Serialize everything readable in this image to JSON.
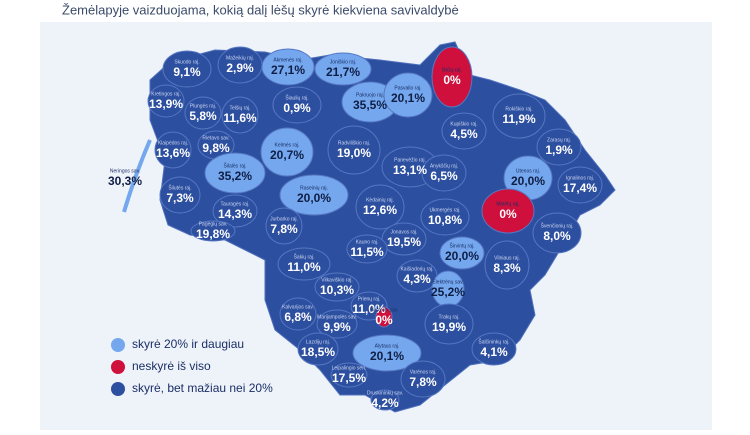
{
  "title": "Žemėlapyje vaizduojama, kokią dalį lėšų skyrė kiekviena savivaldybė",
  "legend": [
    {
      "label": "skyrė 20% ir daugiau",
      "color": "#74a7ee"
    },
    {
      "label": "neskyrė iš viso",
      "color": "#cf0f3c"
    },
    {
      "label": "skyrė, bet mažiau nei 20%",
      "color": "#2d4f9f"
    }
  ],
  "regions": [
    {
      "name": "Skuodo raj.",
      "value": "9,1%",
      "color": "#2d4f9f"
    },
    {
      "name": "Mažeikių raj.",
      "value": "2,9%",
      "color": "#2d4f9f"
    },
    {
      "name": "Akmenės raj.",
      "value": "27,1%",
      "color": "#74a7ee"
    },
    {
      "name": "Joniškio raj.",
      "value": "21,7%",
      "color": "#74a7ee"
    },
    {
      "name": "Biržų raj.",
      "value": "0%",
      "color": "#cf0f3c"
    },
    {
      "name": "Pakruojo raj.",
      "value": "35,5%",
      "color": "#74a7ee"
    },
    {
      "name": "Pasvalio raj.",
      "value": "20,1%",
      "color": "#74a7ee"
    },
    {
      "name": "Kretingos raj.",
      "value": "13,9%",
      "color": "#2d4f9f"
    },
    {
      "name": "Plungės raj.",
      "value": "5,8%",
      "color": "#2d4f9f"
    },
    {
      "name": "Telšių raj.",
      "value": "11,6%",
      "color": "#2d4f9f"
    },
    {
      "name": "Šiaulių raj.",
      "value": "0,9%",
      "color": "#2d4f9f"
    },
    {
      "name": "Rokiškio raj.",
      "value": "11,9%",
      "color": "#2d4f9f"
    },
    {
      "name": "Kupiškio raj.",
      "value": "4,5%",
      "color": "#2d4f9f"
    },
    {
      "name": "Zarasų raj.",
      "value": "1,9%",
      "color": "#2d4f9f"
    },
    {
      "name": "Klaipėdos raj.",
      "value": "13,6%",
      "color": "#2d4f9f"
    },
    {
      "name": "Rietavo sav.",
      "value": "9,8%",
      "color": "#2d4f9f"
    },
    {
      "name": "Kelmės raj.",
      "value": "20,7%",
      "color": "#74a7ee"
    },
    {
      "name": "Radviliškio raj.",
      "value": "19,0%",
      "color": "#2d4f9f"
    },
    {
      "name": "Panevėžio raj.",
      "value": "13,1%",
      "color": "#2d4f9f"
    },
    {
      "name": "Anykščių raj.",
      "value": "6,5%",
      "color": "#2d4f9f"
    },
    {
      "name": "Utenos raj.",
      "value": "20,0%",
      "color": "#74a7ee"
    },
    {
      "name": "Ignalinos raj.",
      "value": "17,4%",
      "color": "#2d4f9f"
    },
    {
      "name": "Neringos sav.",
      "value": "30,3%",
      "color": "#74a7ee"
    },
    {
      "name": "Šilutės raj.",
      "value": "7,3%",
      "color": "#2d4f9f"
    },
    {
      "name": "Šilalės raj.",
      "value": "35,2%",
      "color": "#74a7ee"
    },
    {
      "name": "Raseinių raj.",
      "value": "20,0%",
      "color": "#74a7ee"
    },
    {
      "name": "Kėdainių raj.",
      "value": "12,6%",
      "color": "#2d4f9f"
    },
    {
      "name": "Molėtų raj.",
      "value": "0%",
      "color": "#cf0f3c"
    },
    {
      "name": "Ukmergės raj.",
      "value": "10,8%",
      "color": "#2d4f9f"
    },
    {
      "name": "Švenčionių raj.",
      "value": "8,0%",
      "color": "#2d4f9f"
    },
    {
      "name": "Tauragės raj.",
      "value": "14,3%",
      "color": "#2d4f9f"
    },
    {
      "name": "Pagėgių sav.",
      "value": "19,8%",
      "color": "#2d4f9f"
    },
    {
      "name": "Jurbarko raj.",
      "value": "7,8%",
      "color": "#2d4f9f"
    },
    {
      "name": "Jonavos raj.",
      "value": "19,5%",
      "color": "#2d4f9f"
    },
    {
      "name": "Kauno raj.",
      "value": "11,5%",
      "color": "#2d4f9f"
    },
    {
      "name": "Širvintų raj.",
      "value": "20,0%",
      "color": "#74a7ee"
    },
    {
      "name": "Vilniaus raj.",
      "value": "8,3%",
      "color": "#2d4f9f"
    },
    {
      "name": "Šakių raj.",
      "value": "11,0%",
      "color": "#2d4f9f"
    },
    {
      "name": "Kaišiadorių raj.",
      "value": "4,3%",
      "color": "#2d4f9f"
    },
    {
      "name": "Elektrėnų sav.",
      "value": "25,2%",
      "color": "#74a7ee"
    },
    {
      "name": "Vilkaviškio raj.",
      "value": "10,3%",
      "color": "#2d4f9f"
    },
    {
      "name": "Prienų raj.",
      "value": "11,0%",
      "color": "#2d4f9f"
    },
    {
      "name": "Birštono sav.",
      "value": "0%",
      "color": "#cf0f3c"
    },
    {
      "name": "Kalvarijos sav.",
      "value": "6,8%",
      "color": "#2d4f9f"
    },
    {
      "name": "Marijampolės sav.",
      "value": "9,9%",
      "color": "#2d4f9f"
    },
    {
      "name": "Trakų raj.",
      "value": "19,9%",
      "color": "#2d4f9f"
    },
    {
      "name": "Šalčininkų raj.",
      "value": "4,1%",
      "color": "#2d4f9f"
    },
    {
      "name": "Lazdijų raj.",
      "value": "18,5%",
      "color": "#2d4f9f"
    },
    {
      "name": "Alytaus raj.",
      "value": "20,1%",
      "color": "#74a7ee"
    },
    {
      "name": "Leipalingio sen.",
      "value": "17,5%",
      "color": "#2d4f9f"
    },
    {
      "name": "Varėnos raj.",
      "value": "7,8%",
      "color": "#2d4f9f"
    },
    {
      "name": "Druskininkų sav.",
      "value": "4,2%",
      "color": "#2d4f9f"
    }
  ]
}
